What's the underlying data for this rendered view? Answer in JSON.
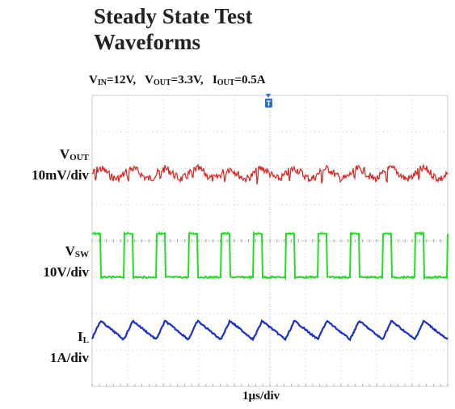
{
  "title_line1": "Steady State Test",
  "title_line2": "Waveforms",
  "conditions": {
    "vin_label": "V",
    "vin_sub": "IN",
    "vin_value": "=12V,",
    "vout_label": "V",
    "vout_sub": "OUT",
    "vout_value": "=3.3V,",
    "iout_label": "I",
    "iout_sub": "OUT",
    "iout_value": "=0.5A"
  },
  "channels": [
    {
      "name": "V",
      "sub": "OUT",
      "scale": "10mV/div",
      "color": "#e0201c"
    },
    {
      "name": "V",
      "sub": "SW",
      "scale": "10V/div",
      "color": "#22dd22"
    },
    {
      "name": "I",
      "sub": "L",
      "scale": "1A/div",
      "color": "#1a2fcf"
    }
  ],
  "trigger_marker": "T",
  "chart_data": {
    "type": "line",
    "title": "Steady State Test Waveforms",
    "xlabel": "1µs/div",
    "x_divisions": 10,
    "y_divisions": 8,
    "grid": true,
    "switching_cycles_on_screen": 11,
    "series": [
      {
        "name": "VOUT",
        "scale": "10mV/div",
        "shape": "ripple",
        "color": "#e0201c"
      },
      {
        "name": "VSW",
        "scale": "10V/div",
        "shape": "square",
        "pulse_amplitude_V": 12,
        "color": "#22dd22"
      },
      {
        "name": "IL",
        "scale": "1A/div",
        "shape": "triangle",
        "color": "#1a2fcf"
      }
    ]
  }
}
